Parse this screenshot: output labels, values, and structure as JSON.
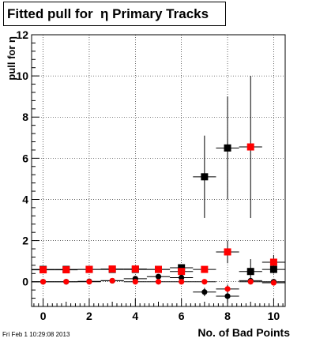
{
  "title": "Fitted pull for  η Primary Tracks",
  "timestamp": "Fri Feb  1 10:29:08 2013",
  "chart_data": {
    "type": "scatter",
    "title": "Fitted pull for  η Primary Tracks",
    "xlabel": "No. of Bad Points",
    "ylabel": "pull for η",
    "xlim": [
      -0.5,
      10.5
    ],
    "ylim": [
      -1.2,
      12
    ],
    "xticks": [
      0,
      2,
      4,
      6,
      8,
      10
    ],
    "xtick_labels": [
      "0",
      "2",
      "4",
      "6",
      "8",
      "10"
    ],
    "yticks": [
      0,
      2,
      4,
      6,
      8,
      10,
      12
    ],
    "ytick_labels": [
      "0",
      "2",
      "4",
      "6",
      "8",
      "10",
      "12"
    ],
    "grid": true,
    "legend": "none",
    "series": [
      {
        "marker": "square",
        "color": "#000000",
        "points": [
          {
            "x": 0,
            "y": 0.6,
            "xerr": 0.5,
            "yerr": 0.03
          },
          {
            "x": 1,
            "y": 0.6,
            "xerr": 0.5,
            "yerr": 0.03
          },
          {
            "x": 2,
            "y": 0.6,
            "xerr": 0.5,
            "yerr": 0.03
          },
          {
            "x": 3,
            "y": 0.6,
            "xerr": 0.5,
            "yerr": 0.03
          },
          {
            "x": 4,
            "y": 0.6,
            "xerr": 0.5,
            "yerr": 0.04
          },
          {
            "x": 5,
            "y": 0.6,
            "xerr": 0.5,
            "yerr": 0.05
          },
          {
            "x": 6,
            "y": 0.68,
            "xerr": 0.5,
            "yerr": 0.1
          },
          {
            "x": 7,
            "y": 5.1,
            "xerr": 0.5,
            "yerr": 2.0
          },
          {
            "x": 8,
            "y": 6.5,
            "xerr": 0.5,
            "yerr": 2.5
          },
          {
            "x": 9,
            "y": 0.5,
            "xerr": 0.5,
            "yerr": 0.6
          },
          {
            "x": 10,
            "y": 0.6,
            "xerr": 0.5,
            "yerr": 0.2
          }
        ]
      },
      {
        "marker": "square",
        "color": "#ff0000",
        "points": [
          {
            "x": 0,
            "y": 0.58,
            "xerr": 0.5,
            "yerr": 0.03
          },
          {
            "x": 1,
            "y": 0.58,
            "xerr": 0.5,
            "yerr": 0.03
          },
          {
            "x": 2,
            "y": 0.6,
            "xerr": 0.5,
            "yerr": 0.03
          },
          {
            "x": 3,
            "y": 0.62,
            "xerr": 0.5,
            "yerr": 0.03
          },
          {
            "x": 4,
            "y": 0.62,
            "xerr": 0.5,
            "yerr": 0.04
          },
          {
            "x": 5,
            "y": 0.6,
            "xerr": 0.5,
            "yerr": 0.05
          },
          {
            "x": 6,
            "y": 0.5,
            "xerr": 0.5,
            "yerr": 0.1
          },
          {
            "x": 7,
            "y": 0.6,
            "xerr": 0.5,
            "yerr": 0.15
          },
          {
            "x": 8,
            "y": 1.45,
            "xerr": 0.5,
            "yerr": 0.55
          },
          {
            "x": 9,
            "y": 6.55,
            "xerr": 0.5,
            "yerr": 3.45
          },
          {
            "x": 10,
            "y": 0.95,
            "xerr": 0.5,
            "yerr": 0.35
          }
        ]
      },
      {
        "marker": "circle",
        "color": "#000000",
        "points": [
          {
            "x": 0,
            "y": 0.0,
            "xerr": 0.5,
            "yerr": 0.03
          },
          {
            "x": 1,
            "y": 0.0,
            "xerr": 0.5,
            "yerr": 0.03
          },
          {
            "x": 2,
            "y": 0.02,
            "xerr": 0.5,
            "yerr": 0.03
          },
          {
            "x": 3,
            "y": 0.05,
            "xerr": 0.5,
            "yerr": 0.03
          },
          {
            "x": 4,
            "y": 0.15,
            "xerr": 0.5,
            "yerr": 0.05
          },
          {
            "x": 5,
            "y": 0.25,
            "xerr": 0.5,
            "yerr": 0.06
          },
          {
            "x": 6,
            "y": 0.2,
            "xerr": 0.5,
            "yerr": 0.1
          },
          {
            "x": 7,
            "y": -0.5,
            "xerr": 0.5,
            "yerr": 0.2
          },
          {
            "x": 8,
            "y": -0.7,
            "xerr": 0.5,
            "yerr": 0.3
          },
          {
            "x": 9,
            "y": 0.05,
            "xerr": 0.5,
            "yerr": 0.1
          },
          {
            "x": 10,
            "y": 0.0,
            "xerr": 0.5,
            "yerr": 0.1
          }
        ]
      },
      {
        "marker": "circle",
        "color": "#ff0000",
        "points": [
          {
            "x": 0,
            "y": 0.0,
            "xerr": 0.5,
            "yerr": 0.03
          },
          {
            "x": 1,
            "y": 0.0,
            "xerr": 0.5,
            "yerr": 0.03
          },
          {
            "x": 2,
            "y": 0.0,
            "xerr": 0.5,
            "yerr": 0.03
          },
          {
            "x": 3,
            "y": 0.05,
            "xerr": 0.5,
            "yerr": 0.03
          },
          {
            "x": 4,
            "y": 0.0,
            "xerr": 0.5,
            "yerr": 0.04
          },
          {
            "x": 5,
            "y": 0.0,
            "xerr": 0.5,
            "yerr": 0.05
          },
          {
            "x": 6,
            "y": 0.0,
            "xerr": 0.5,
            "yerr": 0.08
          },
          {
            "x": 7,
            "y": 0.0,
            "xerr": 0.5,
            "yerr": 0.1
          },
          {
            "x": 8,
            "y": -0.35,
            "xerr": 0.5,
            "yerr": 0.2
          },
          {
            "x": 9,
            "y": 0.0,
            "xerr": 0.5,
            "yerr": 0.1
          },
          {
            "x": 10,
            "y": -0.05,
            "xerr": 0.5,
            "yerr": 0.1
          }
        ]
      }
    ]
  }
}
